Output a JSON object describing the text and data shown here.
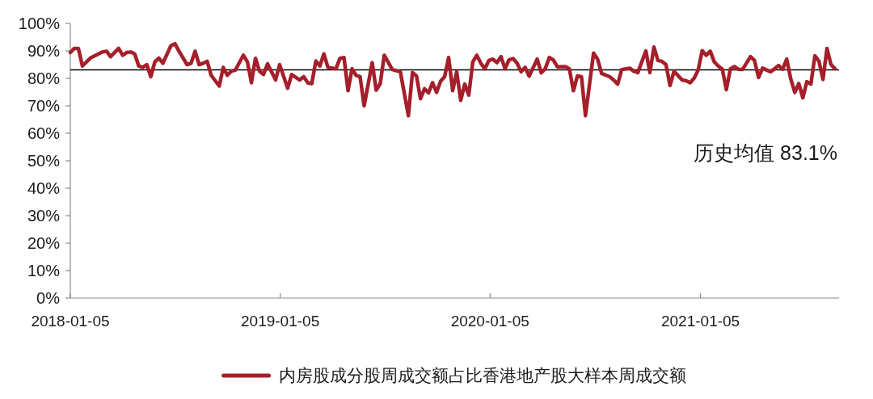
{
  "chart_data": {
    "type": "line",
    "x": [
      "2018-01-05",
      "2018-01-12",
      "2018-01-19",
      "2018-01-26",
      "2018-02-09",
      "2018-03-02",
      "2018-03-09",
      "2018-03-16",
      "2018-03-30",
      "2018-04-06",
      "2018-04-13",
      "2018-04-20",
      "2018-04-27",
      "2018-05-04",
      "2018-05-11",
      "2018-05-18",
      "2018-05-25",
      "2018-06-01",
      "2018-06-08",
      "2018-06-15",
      "2018-06-29",
      "2018-07-06",
      "2018-07-13",
      "2018-07-27",
      "2018-08-03",
      "2018-08-10",
      "2018-08-17",
      "2018-08-24",
      "2018-08-31",
      "2018-09-07",
      "2018-09-21",
      "2018-09-28",
      "2018-10-05",
      "2018-10-12",
      "2018-10-19",
      "2018-11-02",
      "2018-11-09",
      "2018-11-16",
      "2018-11-23",
      "2018-11-30",
      "2018-12-07",
      "2018-12-14",
      "2018-12-28",
      "2019-01-04",
      "2019-01-18",
      "2019-01-25",
      "2019-02-08",
      "2019-02-15",
      "2019-02-22",
      "2019-03-01",
      "2019-03-08",
      "2019-03-15",
      "2019-03-22",
      "2019-03-29",
      "2019-04-12",
      "2019-04-19",
      "2019-04-26",
      "2019-05-03",
      "2019-05-10",
      "2019-05-17",
      "2019-05-24",
      "2019-05-31",
      "2019-06-14",
      "2019-06-21",
      "2019-06-28",
      "2019-07-05",
      "2019-07-19",
      "2019-08-02",
      "2019-08-16",
      "2019-08-23",
      "2019-08-30",
      "2019-09-06",
      "2019-09-13",
      "2019-09-20",
      "2019-09-27",
      "2019-10-04",
      "2019-10-11",
      "2019-10-18",
      "2019-10-25",
      "2019-11-01",
      "2019-11-08",
      "2019-11-15",
      "2019-11-22",
      "2019-11-29",
      "2019-12-06",
      "2019-12-13",
      "2019-12-20",
      "2019-12-27",
      "2020-01-03",
      "2020-01-10",
      "2020-01-17",
      "2020-01-24",
      "2020-01-31",
      "2020-02-07",
      "2020-02-14",
      "2020-02-21",
      "2020-02-28",
      "2020-03-06",
      "2020-03-13",
      "2020-03-27",
      "2020-04-03",
      "2020-04-10",
      "2020-04-17",
      "2020-04-24",
      "2020-05-01",
      "2020-05-15",
      "2020-05-22",
      "2020-05-29",
      "2020-06-05",
      "2020-06-12",
      "2020-06-19",
      "2020-07-03",
      "2020-07-10",
      "2020-07-17",
      "2020-07-31",
      "2020-08-07",
      "2020-08-14",
      "2020-08-21",
      "2020-09-04",
      "2020-09-11",
      "2020-09-18",
      "2020-10-02",
      "2020-10-09",
      "2020-10-16",
      "2020-10-23",
      "2020-10-30",
      "2020-11-06",
      "2020-11-13",
      "2020-11-20",
      "2020-12-04",
      "2020-12-11",
      "2020-12-18",
      "2020-12-25",
      "2021-01-01",
      "2021-01-08",
      "2021-01-15",
      "2021-01-22",
      "2021-01-29",
      "2021-02-05",
      "2021-02-12",
      "2021-02-19",
      "2021-02-26",
      "2021-03-05",
      "2021-03-12",
      "2021-03-19",
      "2021-04-02",
      "2021-04-09",
      "2021-04-16",
      "2021-04-23",
      "2021-05-07",
      "2021-05-14",
      "2021-05-21",
      "2021-05-28",
      "2021-06-04",
      "2021-06-11",
      "2021-06-18",
      "2021-06-25",
      "2021-07-02",
      "2021-07-09",
      "2021-07-16",
      "2021-07-23",
      "2021-07-30",
      "2021-08-06",
      "2021-08-13",
      "2021-08-20",
      "2021-08-27"
    ],
    "series": [
      {
        "name": "内房股成分股周成交额占比香港地产股大样本周成交额",
        "color": "#a51f2a",
        "values": [
          89.4,
          90.9,
          90.9,
          84.5,
          87.4,
          89.6,
          89.9,
          87.9,
          90.9,
          88.4,
          89.4,
          89.6,
          88.9,
          84.5,
          84.0,
          85.0,
          80.6,
          86.0,
          87.4,
          85.5,
          91.9,
          92.6,
          89.9,
          85.0,
          85.5,
          89.9,
          85.0,
          85.5,
          86.2,
          81.1,
          77.2,
          84.0,
          81.1,
          82.6,
          83.0,
          88.4,
          86.0,
          78.4,
          87.3,
          82.6,
          81.4,
          85.3,
          79.4,
          85.0,
          76.4,
          81.4,
          79.4,
          80.6,
          78.4,
          78.1,
          86.3,
          84.5,
          88.9,
          84.0,
          83.5,
          87.3,
          87.6,
          75.5,
          83.5,
          81.1,
          80.6,
          70.0,
          85.7,
          75.7,
          78.1,
          88.4,
          83.2,
          82.4,
          66.4,
          82.1,
          80.9,
          72.6,
          76.2,
          74.7,
          78.4,
          74.9,
          79.0,
          80.6,
          87.6,
          75.5,
          82.4,
          72.0,
          77.9,
          73.9,
          86.0,
          88.4,
          85.5,
          83.5,
          86.5,
          87.0,
          85.7,
          87.9,
          83.5,
          86.7,
          87.2,
          85.5,
          82.4,
          84.0,
          80.8,
          87.0,
          82.0,
          83.5,
          87.6,
          86.7,
          84.2,
          84.3,
          83.5,
          75.5,
          80.9,
          80.6,
          66.4,
          89.2,
          87.0,
          81.8,
          80.6,
          79.4,
          77.9,
          83.2,
          83.7,
          82.6,
          82.1,
          90.0,
          82.1,
          91.4,
          86.5,
          86.2,
          85.0,
          77.4,
          82.6,
          79.4,
          79.1,
          78.4,
          80.1,
          83.0,
          90.1,
          88.4,
          89.9,
          86.0,
          84.5,
          83.3,
          75.9,
          83.5,
          84.3,
          83.3,
          83.2,
          87.9,
          86.5,
          80.3,
          83.7,
          82.4,
          83.5,
          84.7,
          83.3,
          87.0,
          79.8,
          74.9,
          78.1,
          72.9,
          78.8,
          77.9,
          88.2,
          86.3,
          79.6,
          90.9,
          85.0,
          83.5
        ]
      }
    ],
    "xlim": [
      "2018-01-05",
      "2021-09-03"
    ],
    "xticks": [
      "2018-01-05",
      "2019-01-05",
      "2020-01-05",
      "2021-01-05"
    ],
    "ylim": [
      0,
      100
    ],
    "yticks": [
      {
        "value": 0,
        "label": "0%"
      },
      {
        "value": 10,
        "label": "10%"
      },
      {
        "value": 20,
        "label": "20%"
      },
      {
        "value": 30,
        "label": "30%"
      },
      {
        "value": 40,
        "label": "40%"
      },
      {
        "value": 50,
        "label": "50%"
      },
      {
        "value": 60,
        "label": "60%"
      },
      {
        "value": 70,
        "label": "70%"
      },
      {
        "value": 80,
        "label": "80%"
      },
      {
        "value": 90,
        "label": "90%"
      },
      {
        "value": 100,
        "label": "100%"
      }
    ],
    "ref_lines": [
      {
        "axis": "y",
        "value": 83.1,
        "label": "历史均值 83.1%",
        "color": "#000000"
      }
    ],
    "legend": "bottom",
    "grid": false
  }
}
